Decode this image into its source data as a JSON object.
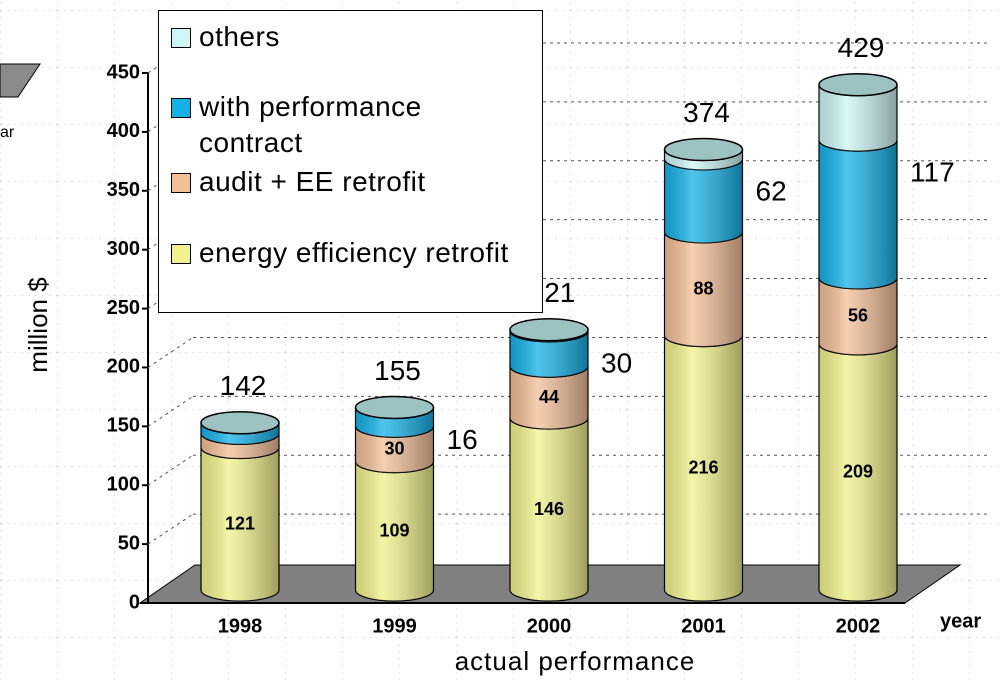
{
  "chart_data": {
    "type": "bar",
    "stacked": true,
    "categories": [
      "1998",
      "1999",
      "2000",
      "2001",
      "2002"
    ],
    "series": [
      {
        "name": "energy efficiency retrofit",
        "color": "#f2f28c",
        "values": [
          121,
          109,
          146,
          216,
          209
        ],
        "value_labels": [
          "121",
          "109",
          "146",
          "216",
          "209"
        ]
      },
      {
        "name": "audit + EE retrofit",
        "color": "#f3bf97",
        "values": [
          12,
          30,
          44,
          88,
          56
        ],
        "value_labels": [
          null,
          "30",
          "44",
          "88",
          "56"
        ]
      },
      {
        "name": "with performance contract",
        "color": "#14b1e8",
        "values": [
          9,
          16,
          30,
          62,
          117
        ],
        "value_labels": [
          null,
          "16",
          "30",
          "62",
          "117"
        ]
      },
      {
        "name": "others",
        "color": "#cdf6f6",
        "values": [
          0,
          0,
          1,
          8,
          47
        ],
        "value_labels": [
          null,
          null,
          null,
          null,
          null
        ]
      }
    ],
    "totals": [
      142,
      155,
      221,
      374,
      429
    ],
    "ylabel": "million $",
    "xlabel": "actual performance",
    "xaxis_unit": "year",
    "fragment": "ar",
    "ylim": [
      0,
      450
    ],
    "yticks": [
      0,
      50,
      100,
      150,
      200,
      250,
      300,
      350,
      400,
      450
    ],
    "grid": true,
    "legend": "top-left"
  }
}
